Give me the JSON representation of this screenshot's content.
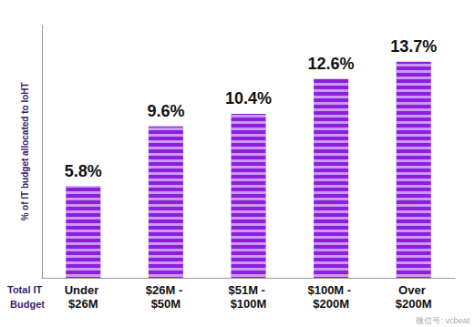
{
  "chart_data": {
    "type": "bar",
    "y_label": "% of IT budget allocated to IoHT",
    "x_label": "Total IT Budget",
    "categories": [
      "Under $26M",
      "$26M - $50M",
      "$51M - $100M",
      "$100M - $200M",
      "Over $200M"
    ],
    "values": [
      5.8,
      9.6,
      10.4,
      12.6,
      13.7
    ],
    "value_labels": [
      "5.8%",
      "9.6%",
      "10.4%",
      "12.6%",
      "13.7%"
    ],
    "color": "#8c1ee0",
    "ylim": [
      0,
      16
    ],
    "yticks": [
      0,
      16
    ],
    "grid": false,
    "data_labels": true,
    "tick_labels": "x",
    "annotations": [
      "微信号: vcbeat"
    ]
  }
}
